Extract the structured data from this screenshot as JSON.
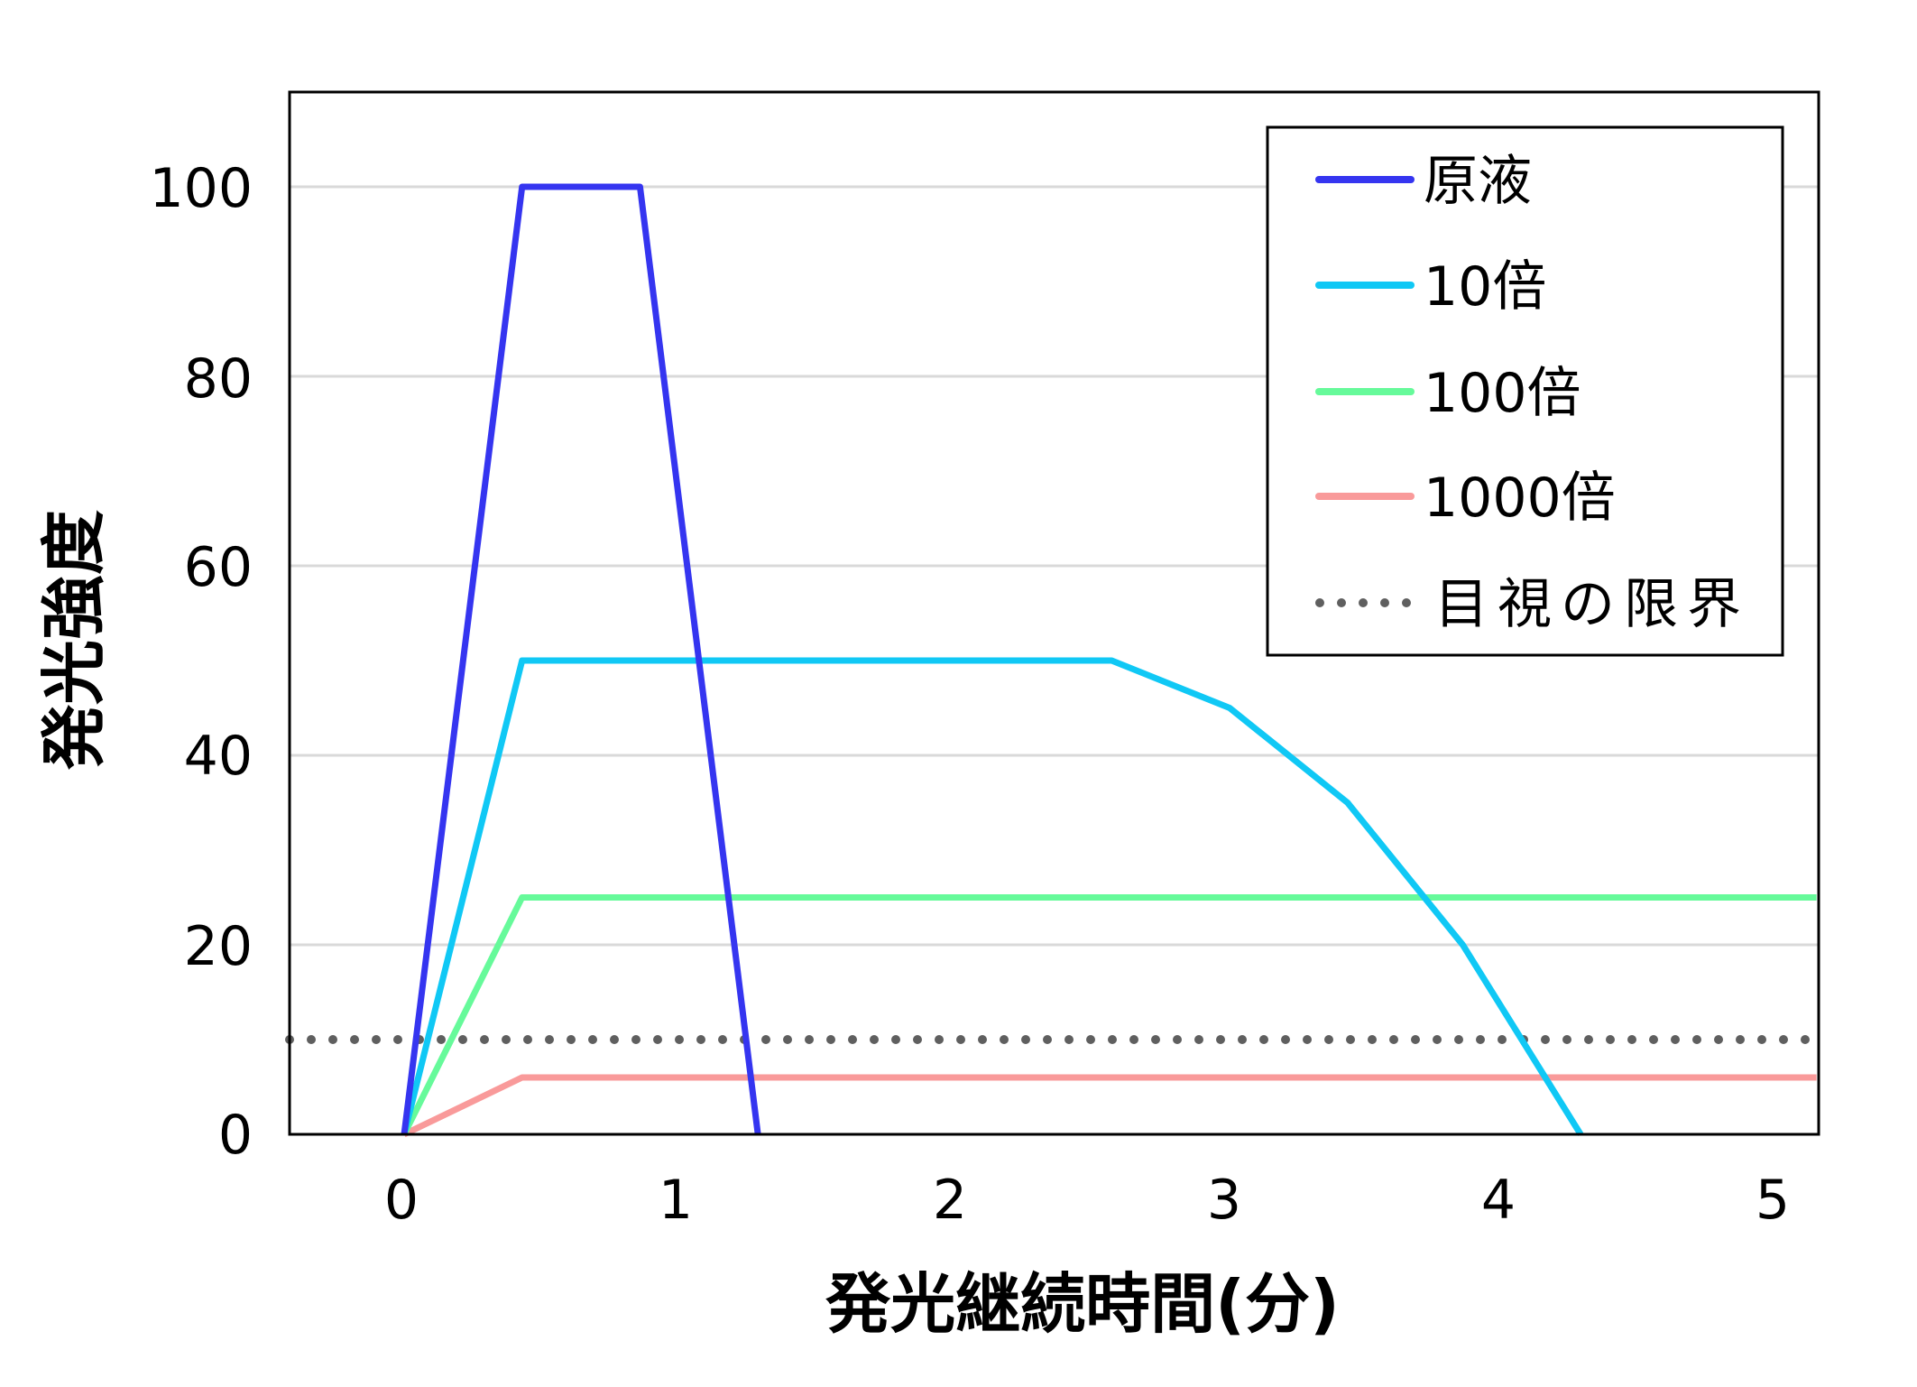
{
  "chart_data": {
    "type": "line",
    "title": "",
    "xlabel": "発光継続時間(分)",
    "ylabel": "発光強度",
    "xlim": [
      -0.42,
      5.15
    ],
    "ylim": [
      0,
      110
    ],
    "xticks": [
      0,
      1,
      2,
      3,
      4,
      5
    ],
    "yticks": [
      0,
      20,
      40,
      60,
      80,
      100
    ],
    "grid": "horizontal",
    "legend_position": "upper right (inside)",
    "series": [
      {
        "name": "原液",
        "color": "#3535f0",
        "style": "solid",
        "x": [
          0,
          0.43,
          0.86,
          1.29
        ],
        "values": [
          0,
          100,
          100,
          0
        ]
      },
      {
        "name": "10倍",
        "color": "#10c8f5",
        "style": "solid",
        "x": [
          0,
          0.43,
          0.86,
          1.29,
          1.72,
          2.15,
          2.58,
          3.01,
          3.44,
          3.86,
          4.29
        ],
        "values": [
          0,
          50,
          50,
          50,
          50,
          50,
          50,
          45,
          35,
          20,
          0
        ]
      },
      {
        "name": "100倍",
        "color": "#66fa9a",
        "style": "solid",
        "x": [
          0,
          0.43,
          5.15
        ],
        "values": [
          0,
          25,
          25
        ]
      },
      {
        "name": "1000倍",
        "color": "#f99a9a",
        "style": "solid",
        "x": [
          0,
          0.43,
          5.15
        ],
        "values": [
          0,
          6,
          6
        ]
      },
      {
        "name": "目視の限界",
        "color": "#5f5f5f",
        "style": "dotted",
        "x": [
          -0.42,
          5.15
        ],
        "values": [
          10,
          10
        ]
      }
    ]
  },
  "axes": {
    "x_title": "発光継続時間(分)",
    "y_title": "発光強度",
    "x_tick_labels": [
      "0",
      "1",
      "2",
      "3",
      "4",
      "5"
    ],
    "y_tick_labels": [
      "0",
      "20",
      "40",
      "60",
      "80",
      "100"
    ]
  },
  "legend": {
    "items": [
      {
        "label": "原液",
        "color": "#3535f0",
        "style": "solid"
      },
      {
        "label": "10倍",
        "color": "#10c8f5",
        "style": "solid"
      },
      {
        "label": "100倍",
        "color": "#66fa9a",
        "style": "solid"
      },
      {
        "label": "1000倍",
        "color": "#f99a9a",
        "style": "solid"
      },
      {
        "label": "目視の限界",
        "color": "#5f5f5f",
        "style": "dotted"
      }
    ]
  }
}
